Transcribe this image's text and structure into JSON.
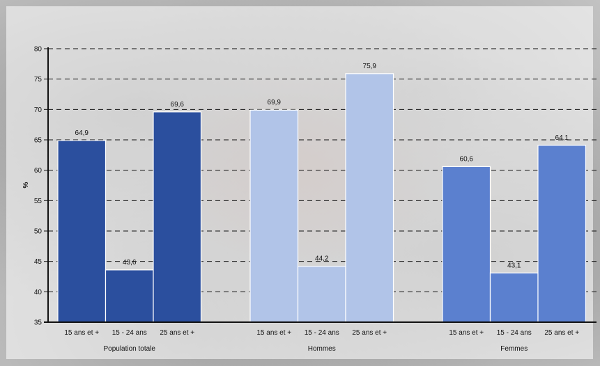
{
  "chart_data": {
    "type": "bar",
    "ylabel": "%",
    "ylim": [
      35,
      80
    ],
    "yticks": [
      "35",
      "40",
      "45",
      "50",
      "55",
      "60",
      "65",
      "70",
      "75",
      "80"
    ],
    "grid": true,
    "groups": [
      {
        "name": "Population totale",
        "color": "#2b4f9e",
        "bars": [
          {
            "category": "15 ans et +",
            "value": 64.9,
            "label": "64,9"
          },
          {
            "category": "15 - 24 ans",
            "value": 43.6,
            "label": "43,6"
          },
          {
            "category": "25 ans et +",
            "value": 69.6,
            "label": "69,6"
          }
        ]
      },
      {
        "name": "Hommes",
        "color": "#b1c4e8",
        "bars": [
          {
            "category": "15 ans et +",
            "value": 69.9,
            "label": "69,9"
          },
          {
            "category": "15 - 24 ans",
            "value": 44.2,
            "label": "44,2"
          },
          {
            "category": "25 ans et +",
            "value": 75.9,
            "label": "75,9"
          }
        ]
      },
      {
        "name": "Femmes",
        "color": "#5b80cf",
        "bars": [
          {
            "category": "15 ans et +",
            "value": 60.6,
            "label": "60,6"
          },
          {
            "category": "15 - 24 ans",
            "value": 43.1,
            "label": "43,1"
          },
          {
            "category": "25 ans et +",
            "value": 64.1,
            "label": "64,1"
          }
        ]
      }
    ]
  }
}
